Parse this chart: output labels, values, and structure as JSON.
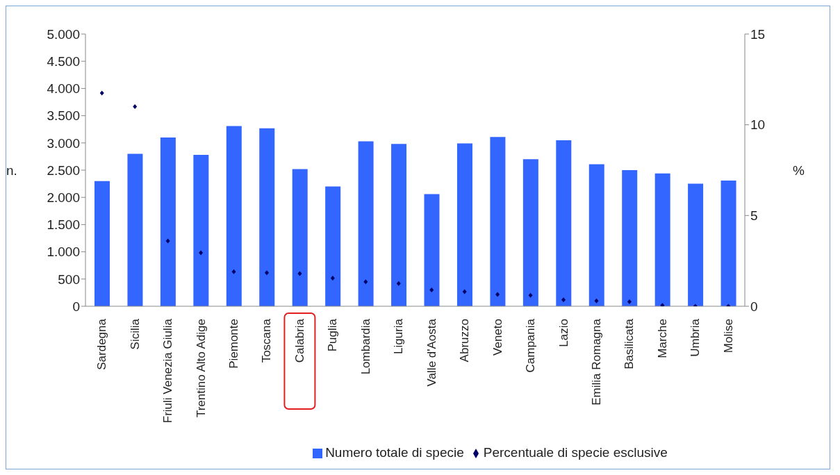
{
  "chart_data": {
    "type": "bar",
    "categories": [
      "Sardegna",
      "Sicilia",
      "Friuli Venezia Giulia",
      "Trentino Alto Adige",
      "Piemonte",
      "Toscana",
      "Calabria",
      "Puglia",
      "Lombardia",
      "Liguria",
      "Valle d'Aosta",
      "Abruzzo",
      "Veneto",
      "Campania",
      "Lazio",
      "Emilia Romagna",
      "Basilicata",
      "Marche",
      "Umbria",
      "Molise"
    ],
    "series": [
      {
        "name": "Numero totale di specie",
        "color": "#3366ff",
        "values": [
          2300,
          2800,
          3100,
          2780,
          3310,
          3270,
          2520,
          2200,
          3030,
          2980,
          2060,
          2990,
          3110,
          2700,
          3050,
          2610,
          2500,
          2440,
          2250,
          2310
        ]
      },
      {
        "name": "Percentuale di specie esclusive",
        "type": "scatter",
        "axis": "y2",
        "color": "#000066",
        "marker": "diamond",
        "values": [
          11.75,
          11.0,
          3.6,
          2.95,
          1.9,
          1.85,
          1.8,
          1.55,
          1.35,
          1.25,
          0.9,
          0.8,
          0.65,
          0.6,
          0.35,
          0.3,
          0.25,
          0.05,
          0,
          0
        ]
      }
    ],
    "ylabel": "n.",
    "y2label": "%",
    "ylim": [
      0,
      5000
    ],
    "yticks": [
      0,
      500,
      {
        "value": 1000,
        "label": "1.000"
      },
      {
        "value": 1500,
        "label": "1.500"
      },
      {
        "value": 2000,
        "label": "2.000"
      },
      {
        "value": 2500,
        "label": "2.500"
      },
      {
        "value": 3000,
        "label": "3.000"
      },
      {
        "value": 3500,
        "label": "3.500"
      },
      {
        "value": 4000,
        "label": "4.000"
      },
      {
        "value": 4500,
        "label": "4.500"
      },
      {
        "value": 5000,
        "label": "5.000"
      }
    ],
    "y2lim": [
      0,
      15
    ],
    "y2ticks": [
      0,
      5,
      10,
      15
    ],
    "grid": false,
    "legend": "bottom"
  }
}
